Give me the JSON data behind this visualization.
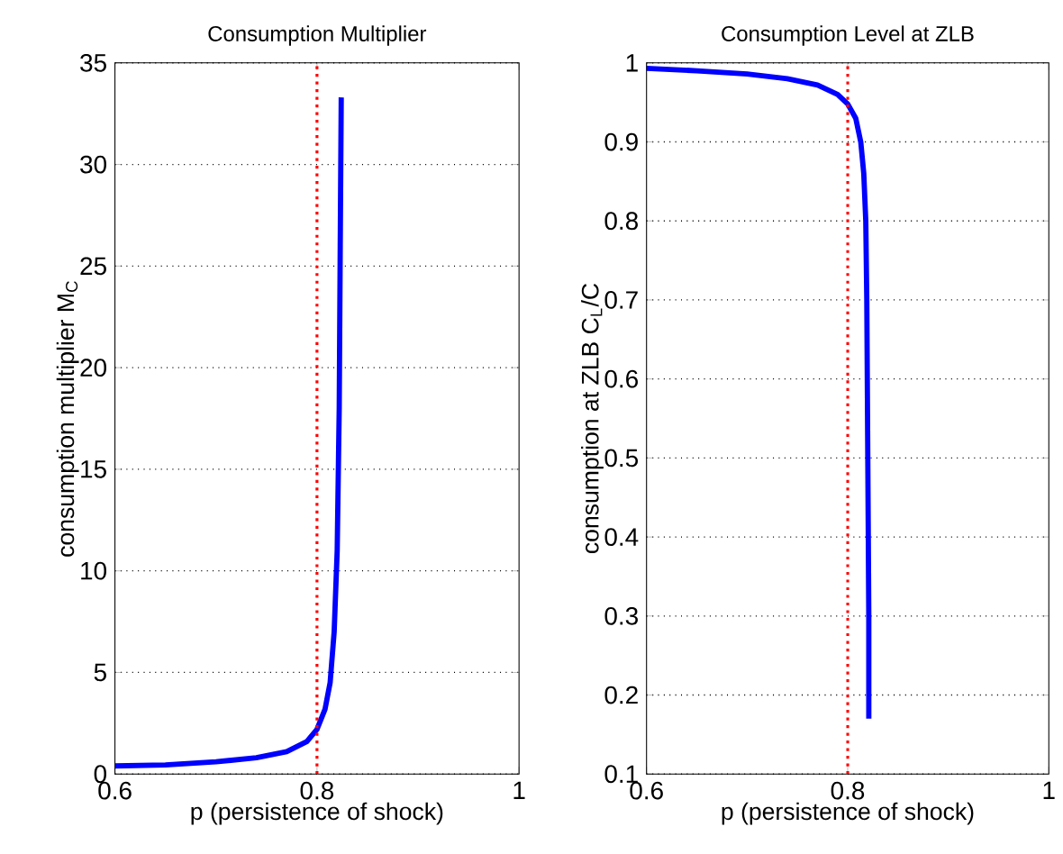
{
  "chart_data": [
    {
      "type": "line",
      "title": "Consumption Multiplier",
      "xlabel": "p (persistence of shock)",
      "ylabel": "consumption multiplier M$_{C}$",
      "xlim": [
        0.6,
        1
      ],
      "xticks": [
        0.6,
        0.8,
        1
      ],
      "ylim": [
        0,
        35
      ],
      "yticks": [
        0,
        5,
        10,
        15,
        20,
        25,
        30,
        35
      ],
      "grid": "y",
      "line_style": "solid",
      "series": [
        {
          "color": "#0000ff",
          "x": [
            0.6,
            0.65,
            0.7,
            0.74,
            0.77,
            0.79,
            0.8,
            0.808,
            0.813,
            0.817,
            0.82,
            0.822,
            0.823,
            0.824
          ],
          "values": [
            0.4,
            0.45,
            0.6,
            0.8,
            1.1,
            1.6,
            2.2,
            3.2,
            4.5,
            7,
            11,
            18,
            26,
            33.3
          ]
        }
      ],
      "ref_lines": [
        {
          "axis": "x",
          "value": 0.8,
          "color": "#ff0000",
          "line_style": "dotted"
        }
      ]
    },
    {
      "type": "line",
      "title": "Consumption Level at ZLB",
      "xlabel": "p (persistence of shock)",
      "ylabel": "consumption at ZLB C$_{L}$/C",
      "xlim": [
        0.6,
        1
      ],
      "xticks": [
        0.6,
        0.8,
        1
      ],
      "ylim": [
        0.1,
        1
      ],
      "yticks": [
        0.1,
        0.2,
        0.3,
        0.4,
        0.5,
        0.6,
        0.7,
        0.8,
        0.9,
        1
      ],
      "grid": "y",
      "line_style": "solid",
      "series": [
        {
          "color": "#0000ff",
          "x": [
            0.6,
            0.65,
            0.7,
            0.74,
            0.77,
            0.79,
            0.8,
            0.808,
            0.813,
            0.816,
            0.818,
            0.819,
            0.82,
            0.821,
            0.821
          ],
          "values": [
            0.993,
            0.99,
            0.986,
            0.98,
            0.972,
            0.96,
            0.948,
            0.93,
            0.9,
            0.86,
            0.8,
            0.7,
            0.5,
            0.3,
            0.17
          ]
        }
      ],
      "ref_lines": [
        {
          "axis": "x",
          "value": 0.8,
          "color": "#ff0000",
          "line_style": "dotted"
        }
      ]
    }
  ]
}
